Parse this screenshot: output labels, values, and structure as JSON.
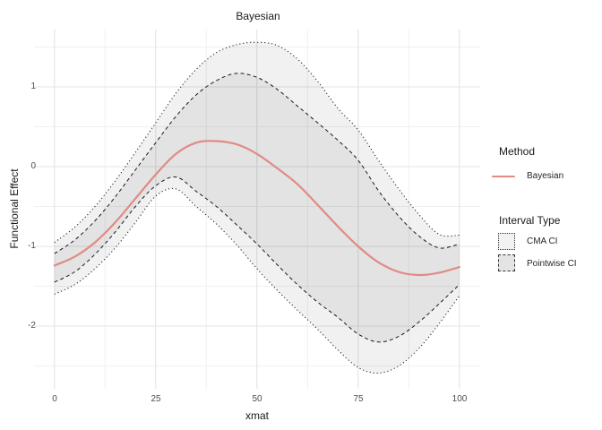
{
  "title": "Bayesian",
  "axes": {
    "x_label": "xmat",
    "y_label": "Functional Effect",
    "x_ticks": [
      "0",
      "25",
      "50",
      "75",
      "100"
    ],
    "y_ticks": [
      "1",
      "0",
      "-1",
      "-2"
    ]
  },
  "legend": {
    "method_title": "Method",
    "method_item": "Bayesian",
    "interval_title": "Interval Type",
    "interval_item_cma": "CMA CI",
    "interval_item_pointwise": "Pointwise CI"
  },
  "colors": {
    "mean_line": "#E08B85",
    "ci_line": "#1a1a1a",
    "band_fill_single": "#f2f2f2",
    "band_fill_overlap": "#e4e4e4",
    "grid_major": "#e4e4e4",
    "grid_minor": "#f0f0f0",
    "tick_text": "#4d4d4d",
    "title_text": "#1a1a1a"
  },
  "chart_data": {
    "type": "line",
    "title": "Bayesian",
    "xlabel": "xmat",
    "ylabel": "Functional Effect",
    "xlim": [
      -5,
      105
    ],
    "ylim": [
      -2.79,
      1.72
    ],
    "x_major_ticks": [
      0,
      25,
      50,
      75,
      100
    ],
    "y_major_ticks": [
      -2,
      -1,
      0,
      1
    ],
    "grid": "major+minor",
    "legend_position": "right",
    "x": [
      0,
      5,
      10,
      15,
      20,
      25,
      30,
      35,
      40,
      45,
      50,
      55,
      60,
      65,
      70,
      75,
      80,
      85,
      90,
      95,
      100
    ],
    "series": [
      {
        "name": "Bayesian mean",
        "role": "mean",
        "style": "solid",
        "color": "#E08B85",
        "values": [
          -1.24,
          -1.13,
          -0.95,
          -0.7,
          -0.4,
          -0.1,
          0.16,
          0.3,
          0.32,
          0.28,
          0.16,
          -0.02,
          -0.22,
          -0.48,
          -0.75,
          -1.0,
          -1.2,
          -1.32,
          -1.36,
          -1.33,
          -1.26
        ]
      },
      {
        "name": "Pointwise CI upper",
        "role": "pw_upper",
        "style": "dashed",
        "color": "#1a1a1a",
        "values": [
          -1.09,
          -0.92,
          -0.68,
          -0.38,
          -0.04,
          0.3,
          0.63,
          0.9,
          1.08,
          1.17,
          1.12,
          0.97,
          0.76,
          0.55,
          0.33,
          0.08,
          -0.3,
          -0.62,
          -0.87,
          -1.02,
          -0.97
        ]
      },
      {
        "name": "Pointwise CI lower",
        "role": "pw_lower",
        "style": "dashed",
        "color": "#1a1a1a",
        "values": [
          -1.45,
          -1.32,
          -1.1,
          -0.82,
          -0.5,
          -0.24,
          -0.13,
          -0.31,
          -0.5,
          -0.73,
          -0.97,
          -1.23,
          -1.48,
          -1.7,
          -1.89,
          -2.1,
          -2.2,
          -2.13,
          -1.95,
          -1.72,
          -1.48
        ]
      },
      {
        "name": "CMA CI upper",
        "role": "cma_upper",
        "style": "dotted",
        "color": "#1a1a1a",
        "values": [
          -0.95,
          -0.76,
          -0.5,
          -0.18,
          0.18,
          0.55,
          0.92,
          1.22,
          1.43,
          1.53,
          1.56,
          1.52,
          1.35,
          1.07,
          0.73,
          0.46,
          0.08,
          -0.28,
          -0.6,
          -0.85,
          -0.86
        ]
      },
      {
        "name": "CMA CI lower",
        "role": "cma_lower",
        "style": "dotted",
        "color": "#1a1a1a",
        "values": [
          -1.6,
          -1.48,
          -1.28,
          -1.02,
          -0.7,
          -0.37,
          -0.28,
          -0.5,
          -0.72,
          -0.98,
          -1.28,
          -1.55,
          -1.8,
          -2.04,
          -2.3,
          -2.52,
          -2.59,
          -2.5,
          -2.28,
          -1.97,
          -1.62
        ]
      }
    ],
    "bands": [
      {
        "name": "CMA CI",
        "upper": "cma_upper",
        "lower": "cma_lower",
        "border": "dotted"
      },
      {
        "name": "Pointwise CI",
        "upper": "pw_upper",
        "lower": "pw_lower",
        "border": "dashed"
      }
    ]
  }
}
